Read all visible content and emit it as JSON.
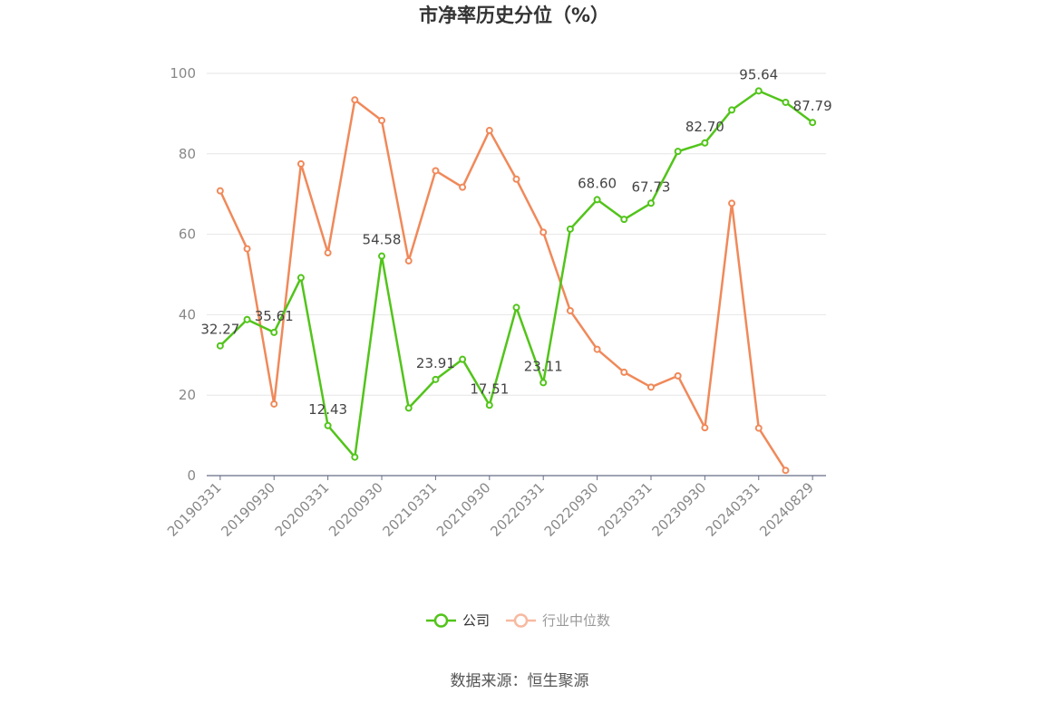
{
  "chart_data": {
    "type": "line",
    "title": "市净率历史分位（%）",
    "x": [
      "20190331",
      "20190630",
      "20190930",
      "20191231",
      "20200331",
      "20200630",
      "20200930",
      "20201231",
      "20210331",
      "20210630",
      "20210930",
      "20211231",
      "20220331",
      "20220630",
      "20220930",
      "20221231",
      "20230331",
      "20230630",
      "20230930",
      "20231231",
      "20240331",
      "20240630",
      "20240829"
    ],
    "x_tick_labels": [
      "20190331",
      "20190930",
      "20200331",
      "20200930",
      "20210331",
      "20210930",
      "20220331",
      "20220930",
      "20230331",
      "20230930",
      "20240331",
      "20240829"
    ],
    "ylim": [
      0,
      100
    ],
    "y_ticks": [
      0,
      20,
      40,
      60,
      80,
      100
    ],
    "grid": true,
    "legend_position": "bottom",
    "series": [
      {
        "name": "公司",
        "color": "#52c41a",
        "values": [
          32.27,
          38.8,
          35.61,
          49.2,
          12.43,
          4.6,
          54.58,
          16.8,
          23.91,
          28.9,
          17.51,
          41.8,
          23.11,
          61.3,
          68.6,
          63.7,
          67.73,
          80.6,
          82.7,
          90.9,
          95.64,
          92.8,
          87.79
        ],
        "labels": [
          "32.27",
          "",
          "35.61",
          "",
          "12.43",
          "",
          "54.58",
          "",
          "23.91",
          "",
          "17.51",
          "",
          "23.11",
          "",
          "68.60",
          "",
          "67.73",
          "",
          "82.70",
          "",
          "95.64",
          "",
          "87.79"
        ]
      },
      {
        "name": "行业中位数",
        "color": "#f0895a",
        "values": [
          70.8,
          56.4,
          17.8,
          77.5,
          55.4,
          93.4,
          88.3,
          53.4,
          75.8,
          71.7,
          85.8,
          73.7,
          60.5,
          41.0,
          31.4,
          25.7,
          22.0,
          24.8,
          11.9,
          67.7,
          11.8,
          1.3,
          null
        ]
      }
    ]
  },
  "legend": {
    "company_label": "公司",
    "industry_label": "行业中位数"
  },
  "source": "数据来源：恒生聚源",
  "colors": {
    "company": "#52c41a",
    "industry": "#f0895a",
    "industry_legend": "#f7b9a0",
    "grid": "#e6e6e6",
    "axis": "#666e87"
  }
}
